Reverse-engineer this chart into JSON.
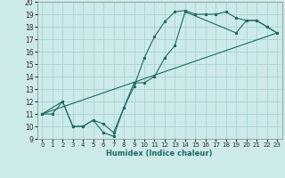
{
  "xlabel": "Humidex (Indice chaleur)",
  "bg_color": "#cceae7",
  "grid_color": "#aad4d0",
  "line_color": "#1a6b60",
  "xlim": [
    -0.5,
    23.5
  ],
  "ylim": [
    9,
    20
  ],
  "xticks": [
    0,
    1,
    2,
    3,
    4,
    5,
    6,
    7,
    8,
    9,
    10,
    11,
    12,
    13,
    14,
    15,
    16,
    17,
    18,
    19,
    20,
    21,
    22,
    23
  ],
  "yticks": [
    9,
    10,
    11,
    12,
    13,
    14,
    15,
    16,
    17,
    18,
    19,
    20
  ],
  "line1_x": [
    0,
    1,
    2,
    3,
    4,
    5,
    6,
    7,
    8,
    9,
    10,
    11,
    12,
    13,
    14,
    15,
    16,
    17,
    18,
    19,
    20,
    21,
    22,
    23
  ],
  "line1_y": [
    11,
    11,
    12,
    10,
    10,
    10.5,
    9.5,
    9.2,
    11.5,
    13.2,
    15.5,
    17.2,
    18.4,
    19.2,
    19.3,
    19.0,
    19.0,
    19.0,
    19.2,
    18.7,
    18.5,
    18.5,
    18.0,
    17.5
  ],
  "line2_x": [
    0,
    2,
    3,
    4,
    5,
    6,
    7,
    8,
    9,
    10,
    11,
    12,
    13,
    14,
    19,
    20,
    21,
    22,
    23
  ],
  "line2_y": [
    11,
    12,
    10,
    10,
    10.5,
    10.2,
    9.5,
    11.5,
    13.5,
    13.5,
    14.0,
    15.5,
    16.5,
    19.2,
    17.5,
    18.5,
    18.5,
    18.0,
    17.5
  ],
  "line3_x": [
    0,
    23
  ],
  "line3_y": [
    11,
    17.5
  ]
}
